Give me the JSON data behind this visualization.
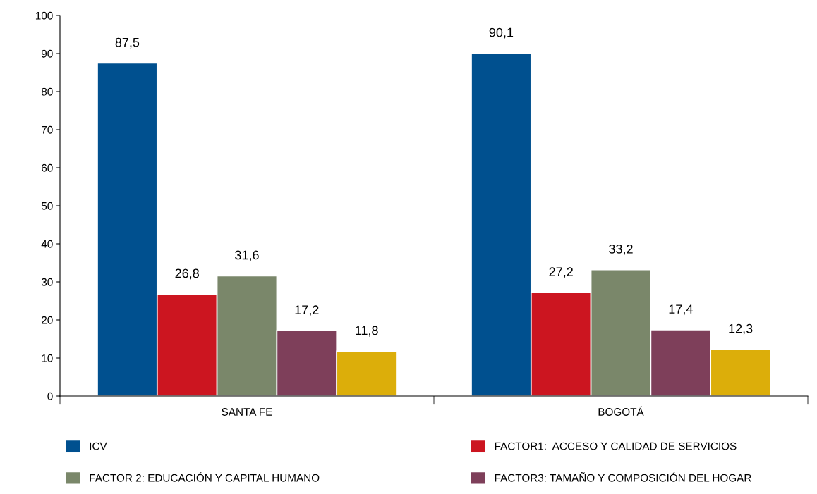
{
  "chart_data": {
    "type": "bar",
    "categories": [
      "SANTA FE",
      "BOGOTÁ"
    ],
    "series": [
      {
        "name": "ICV",
        "color": "#00508f",
        "values": [
          87.5,
          90.1
        ],
        "value_labels": [
          "87,5",
          "90,1"
        ]
      },
      {
        "name": "FACTOR1:  ACCESO Y CALIDAD DE SERVICIOS",
        "color": "#cc1520",
        "values": [
          26.8,
          27.2
        ],
        "value_labels": [
          "26,8",
          "27,2"
        ]
      },
      {
        "name": "FACTOR 2: EDUCACIÓN Y CAPITAL HUMANO",
        "color": "#7a876a",
        "values": [
          31.6,
          33.2
        ],
        "value_labels": [
          "31,6",
          "33,2"
        ]
      },
      {
        "name": "FACTOR3: TAMAÑO Y COMPOSICIÓN DEL HOGAR",
        "color": "#7e3f5a",
        "values": [
          17.2,
          17.4
        ],
        "value_labels": [
          "17,2",
          "17,4"
        ]
      },
      {
        "color": "#dcae0a",
        "values": [
          11.8,
          12.3
        ],
        "value_labels": [
          "11,8",
          "12,3"
        ]
      }
    ],
    "ylim": [
      0,
      100
    ],
    "yticks": [
      0,
      10,
      20,
      30,
      40,
      50,
      60,
      70,
      80,
      90,
      100
    ],
    "grid": false,
    "legend": "bottom"
  }
}
